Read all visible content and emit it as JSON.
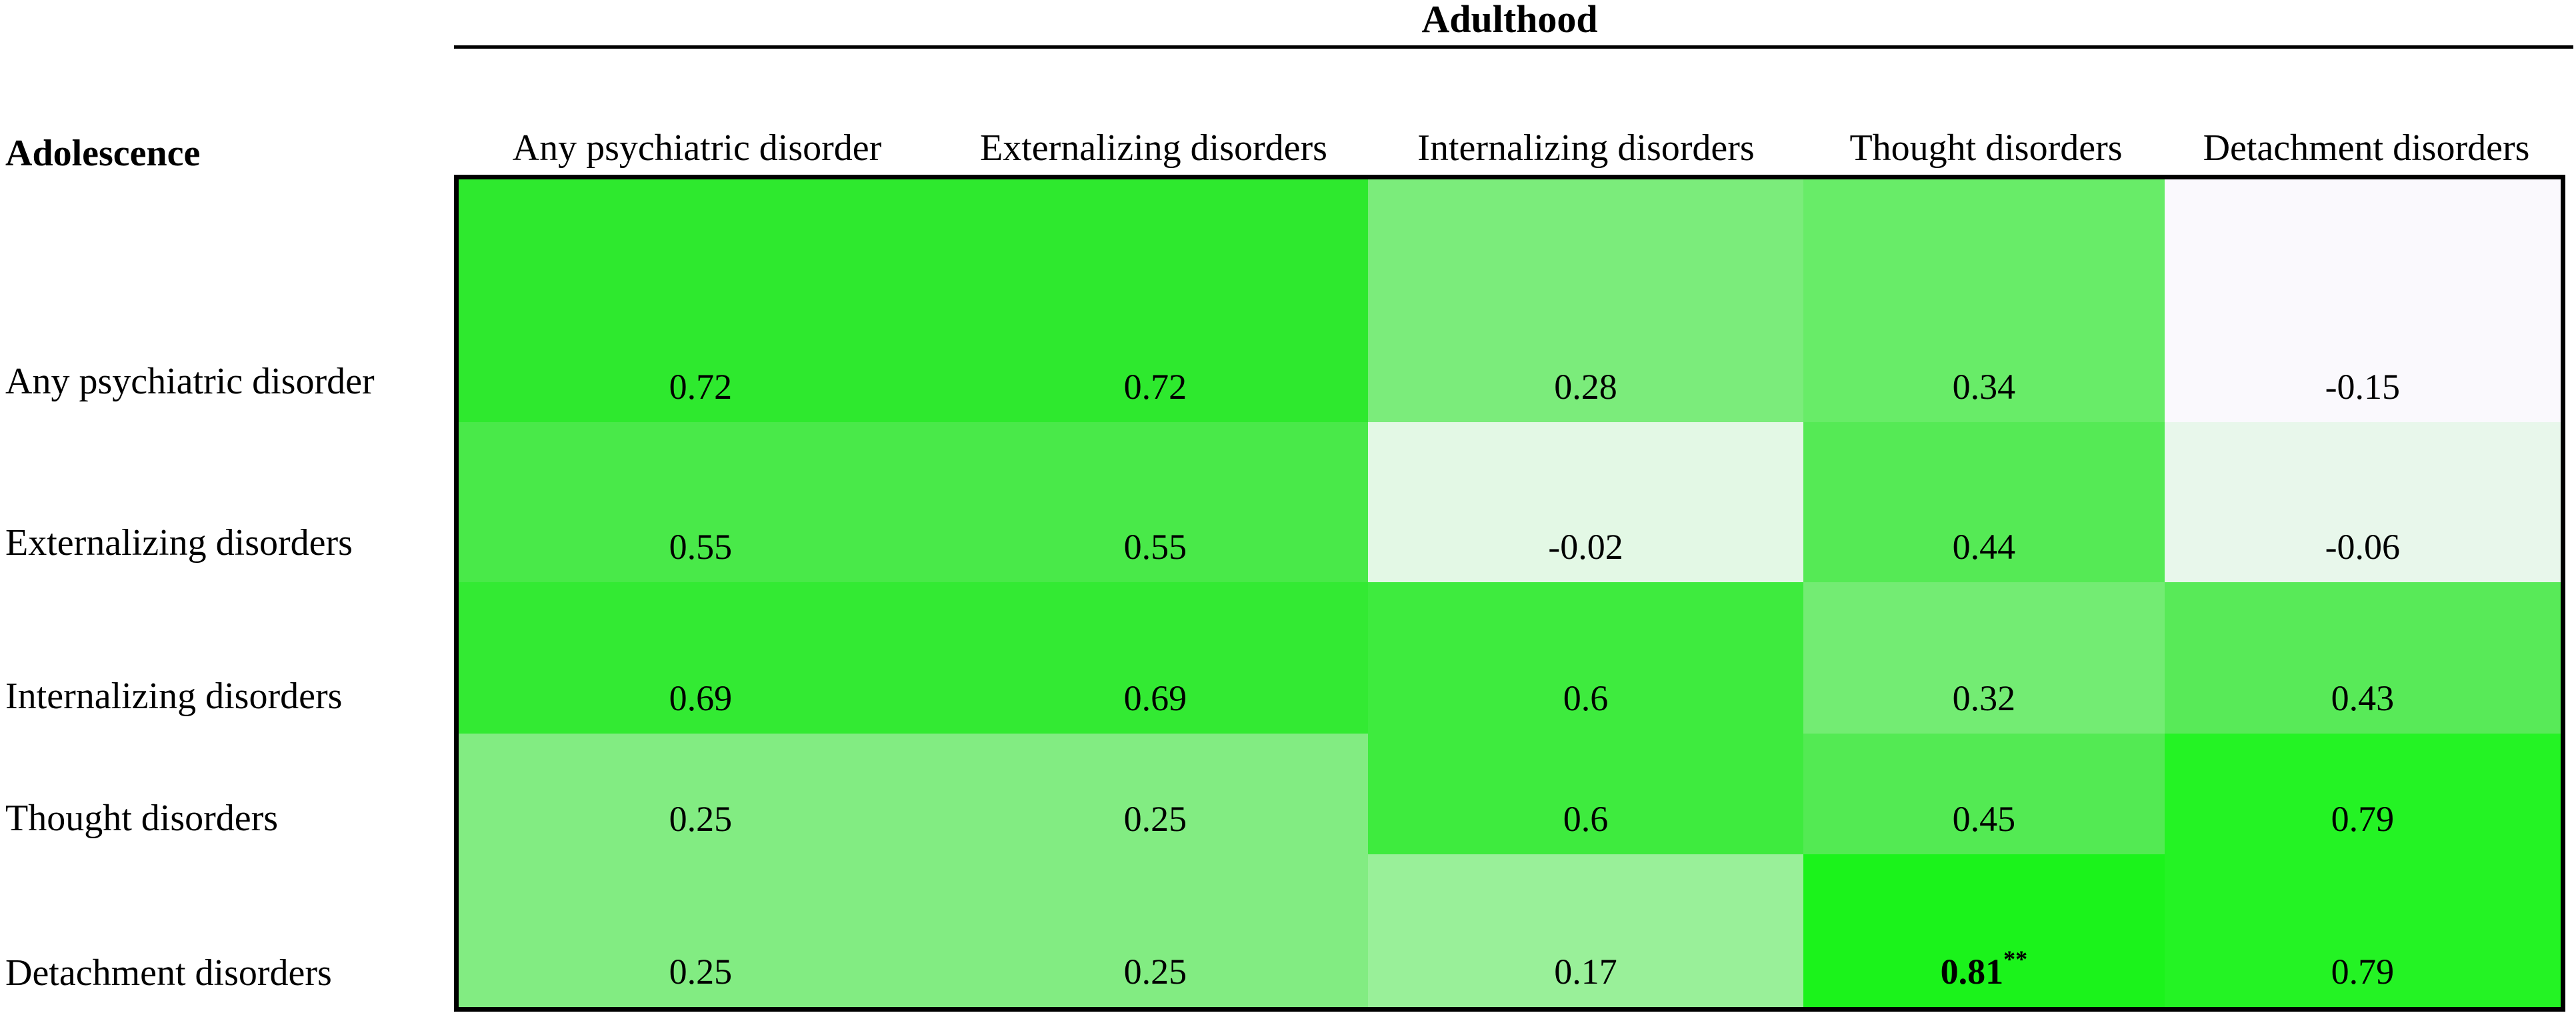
{
  "axis_titles": {
    "column_axis": "Adulthood",
    "row_axis": "Adolescence"
  },
  "chart_data": {
    "type": "heatmap",
    "title": "Adulthood",
    "xlabel": "Adulthood",
    "ylabel": "Adolescence",
    "colormap": "white-to-green",
    "legend": "none",
    "columns": [
      "Any psychiatric disorder",
      "Externalizing disorders",
      "Internalizing disorders",
      "Thought disorders",
      "Detachment disorders"
    ],
    "rows": [
      "Any psychiatric disorder",
      "Externalizing disorders",
      "Internalizing disorders",
      "Thought disorders",
      "Detachment disorders"
    ],
    "values": [
      [
        0.72,
        0.72,
        0.28,
        0.34,
        -0.15
      ],
      [
        0.55,
        0.55,
        -0.02,
        0.44,
        -0.06
      ],
      [
        0.69,
        0.69,
        0.6,
        0.32,
        0.43
      ],
      [
        0.25,
        0.25,
        0.6,
        0.45,
        0.79
      ],
      [
        0.25,
        0.25,
        0.17,
        0.81,
        0.79
      ]
    ],
    "cell_labels": [
      [
        "0.72",
        "0.72",
        "0.28",
        "0.34",
        "-0.15"
      ],
      [
        "0.55",
        "0.55",
        "-0.02",
        "0.44",
        "-0.06"
      ],
      [
        "0.69",
        "0.69",
        "0.6",
        "0.32",
        "0.43"
      ],
      [
        "0.25",
        "0.25",
        "0.6",
        "0.45",
        "0.79"
      ],
      [
        "0.25",
        "0.25",
        "0.17",
        "0.81",
        "0.79"
      ]
    ],
    "significance": {
      "row_index": 4,
      "col_index": 3,
      "row": "Detachment disorders",
      "column": "Thought disorders",
      "value": 0.81,
      "marker": "**",
      "bold": true
    },
    "cell_styles": [
      [
        "background:#2EE92E",
        "background:#2EE92E",
        "background:#7BEC7B",
        "background:#68EC68",
        "background:#FAF9FD"
      ],
      [
        "background:#49E949",
        "background:#49E949",
        "background:#E3F8E5",
        "background:#55EA55",
        "background:#E8F7EB"
      ],
      [
        "background:#33EA33",
        "background:#33EA33",
        "background:#3EEB3E",
        "background:#73EC73",
        "background:#58EA58"
      ],
      [
        "background:#82EC82",
        "background:#82EC82",
        "background:#3EEB3E",
        "background:#53EA53",
        "background:#24F324"
      ],
      [
        "background:#82EC82",
        "background:#82EC82",
        "background:#99F099",
        "background:#1BF31B",
        "background:#24F324"
      ]
    ],
    "border_color": "#000000",
    "cell_max_color": "#1BF31B",
    "cell_min_color": "#FAF9FD"
  }
}
